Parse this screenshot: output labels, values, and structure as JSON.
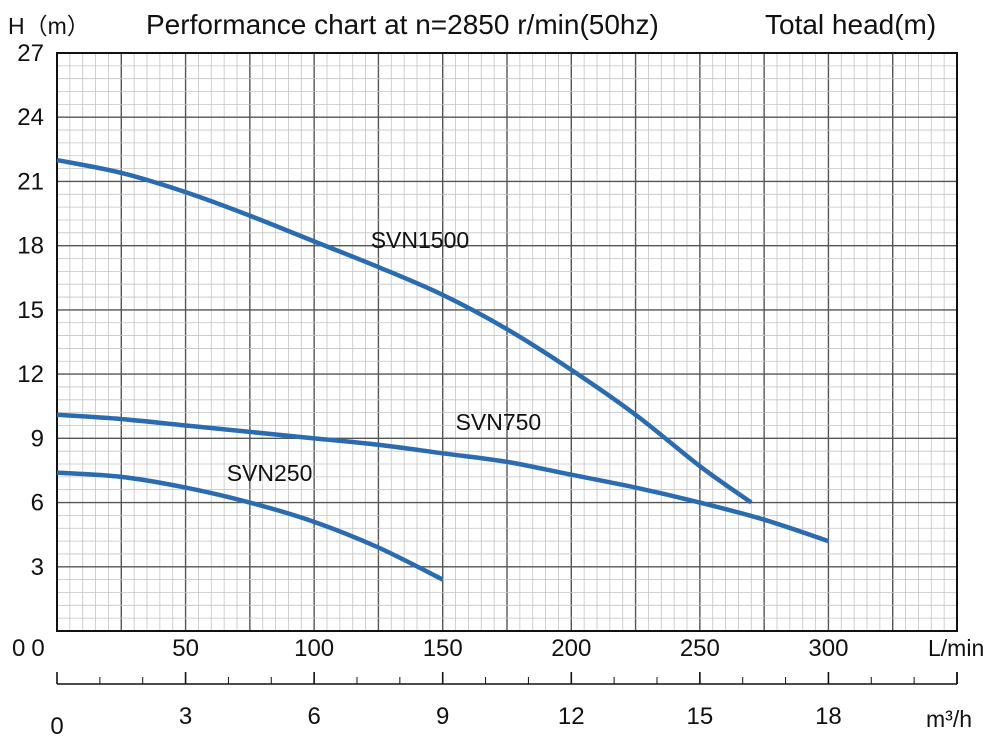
{
  "chart_data": {
    "type": "line",
    "title": "Performance chart at n=2850 r/min(50hz)",
    "ylabel": "H（m）",
    "y2label": "Total head(m)",
    "xlabel": "L/min",
    "x2label": "m³/h",
    "xlim": [
      0,
      350
    ],
    "ylim": [
      0,
      27
    ],
    "x2lim": [
      0,
      21
    ],
    "x_ticks": [
      0,
      50,
      100,
      150,
      200,
      250,
      300
    ],
    "y_ticks": [
      3,
      6,
      9,
      12,
      15,
      18,
      21,
      24,
      27
    ],
    "y_origin_label": "0",
    "x2_ticks": [
      0,
      3,
      6,
      9,
      12,
      15,
      18
    ],
    "grid": true,
    "line_color": "#2b6cb0",
    "series": [
      {
        "name": "SVN1500",
        "x": [
          0,
          25,
          50,
          75,
          100,
          125,
          150,
          175,
          200,
          225,
          250,
          270
        ],
        "y": [
          22.0,
          21.4,
          20.5,
          19.4,
          18.2,
          17.0,
          15.7,
          14.1,
          12.2,
          10.1,
          7.7,
          6.0
        ],
        "label_at": [
          122,
          17.9
        ]
      },
      {
        "name": "SVN750",
        "x": [
          0,
          25,
          50,
          75,
          100,
          125,
          150,
          175,
          200,
          225,
          250,
          275,
          300
        ],
        "y": [
          10.1,
          9.9,
          9.6,
          9.3,
          9.0,
          8.7,
          8.3,
          7.9,
          7.3,
          6.7,
          6.0,
          5.2,
          4.2
        ],
        "label_at": [
          155,
          9.4
        ]
      },
      {
        "name": "SVN250",
        "x": [
          0,
          25,
          50,
          75,
          100,
          125,
          150
        ],
        "y": [
          7.4,
          7.2,
          6.7,
          6.0,
          5.1,
          3.9,
          2.4
        ],
        "label_at": [
          66,
          7.0
        ]
      }
    ]
  }
}
